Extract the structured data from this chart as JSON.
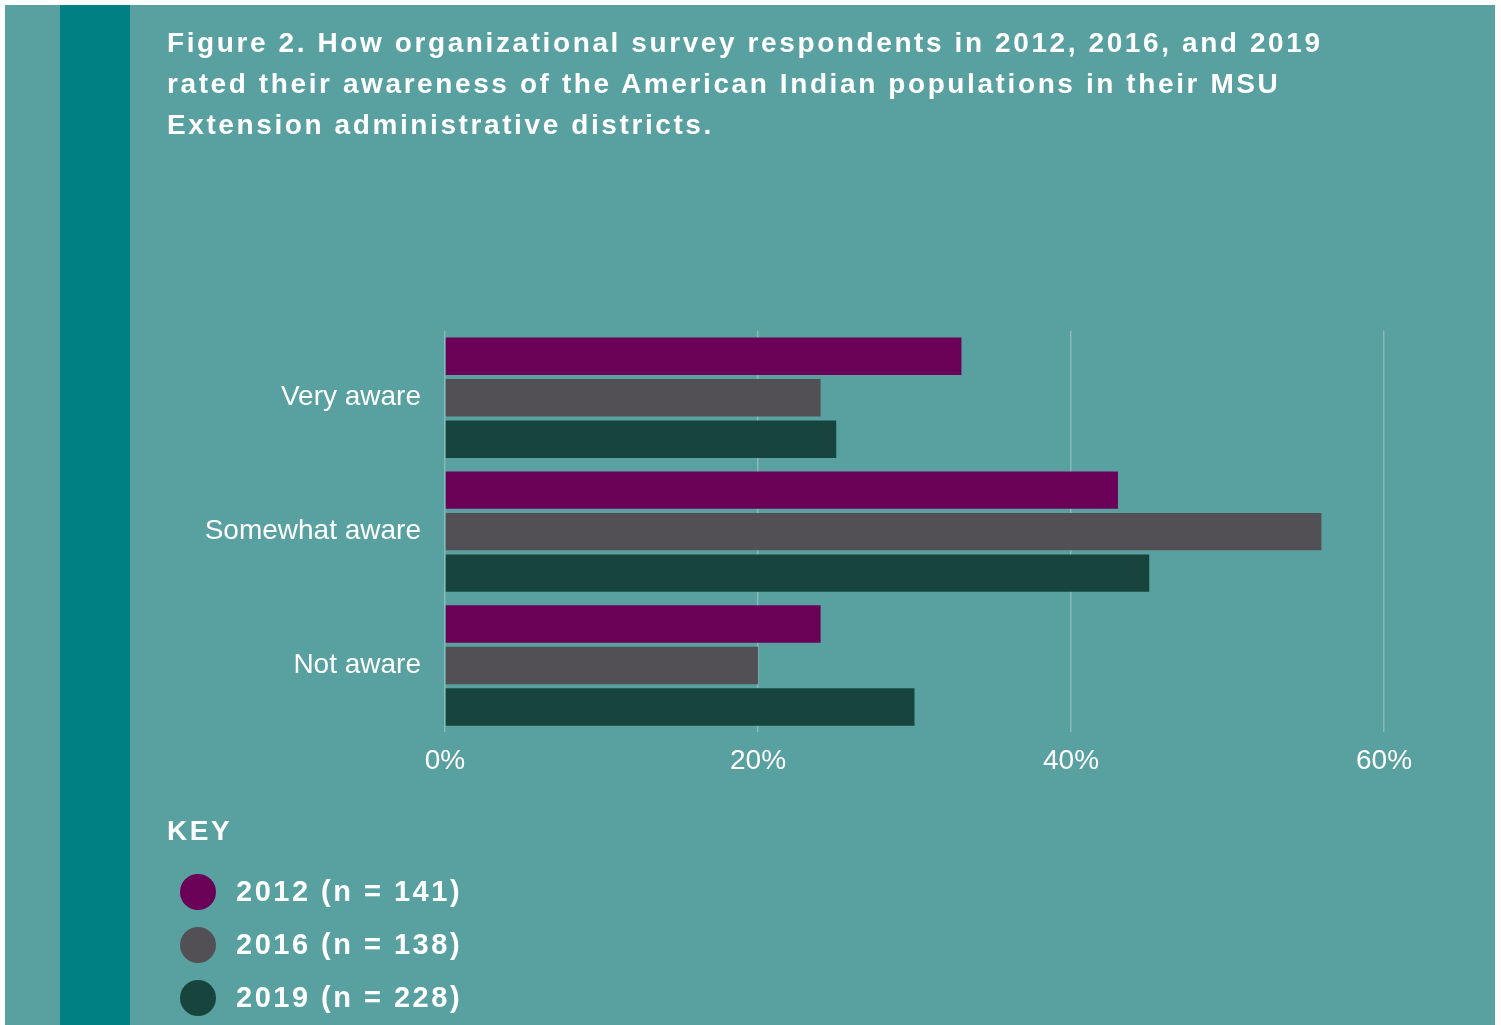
{
  "chart_data": {
    "type": "bar",
    "orientation": "horizontal",
    "title": "Figure 2. How organizational survey respondents in 2012, 2016, and 2019 rated their awareness of the American Indian populations in their MSU Extension administrative districts.",
    "categories": [
      "Very aware",
      "Somewhat aware",
      "Not aware"
    ],
    "series": [
      {
        "name": "2012 (n = 141)",
        "color": "#6b0057",
        "values": [
          33,
          43,
          24
        ]
      },
      {
        "name": "2016 (n = 138)",
        "color": "#525054",
        "values": [
          24,
          56,
          20
        ]
      },
      {
        "name": "2019 (n = 228)",
        "color": "#17443c",
        "values": [
          25,
          45,
          30
        ]
      }
    ],
    "xlim": [
      0,
      60
    ],
    "xticks": [
      {
        "value": 0,
        "label": "0%"
      },
      {
        "value": 20,
        "label": "20%"
      },
      {
        "value": 40,
        "label": "40%"
      },
      {
        "value": 60,
        "label": "60%"
      }
    ],
    "grid": "x",
    "legend": "bottom left",
    "legend_title": "KEY"
  }
}
